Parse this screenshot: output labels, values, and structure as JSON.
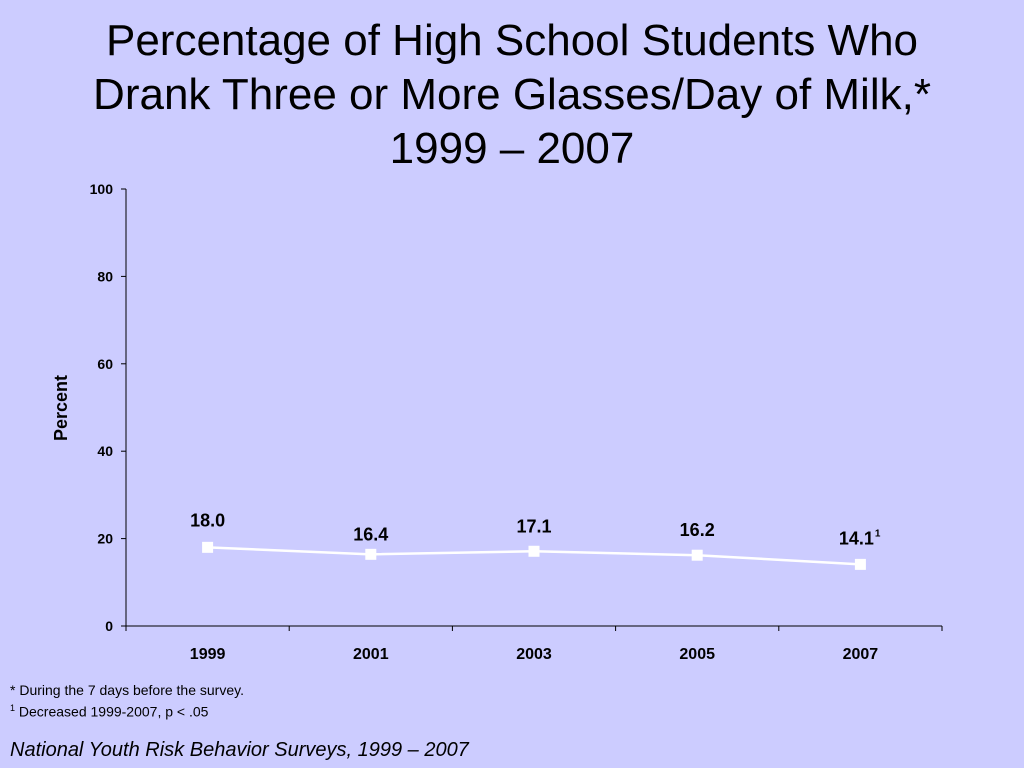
{
  "title_lines": [
    "Percentage of High School Students Who",
    "Drank Three or More Glasses/Day of Milk,*",
    "1999 – 2007"
  ],
  "chart_data": {
    "type": "line",
    "title": "Percentage of High School Students Who Drank Three or More Glasses/Day of Milk,* 1999 – 2007",
    "xlabel": "",
    "ylabel": "Percent",
    "categories": [
      "1999",
      "2001",
      "2003",
      "2005",
      "2007"
    ],
    "series": [
      {
        "values": [
          18.0,
          16.4,
          17.1,
          16.2,
          14.1
        ],
        "labels": [
          "18.0",
          "16.4",
          "17.1",
          "16.2",
          "14.1"
        ],
        "label_superscripts": [
          "",
          "",
          "",
          "",
          "1"
        ]
      }
    ],
    "ylim": [
      0,
      100
    ],
    "yticks": [
      0,
      20,
      40,
      60,
      80,
      100
    ],
    "grid": false,
    "legend": "none",
    "marker": "square",
    "line_color": "#ffffff",
    "background_color": "#ccccff"
  },
  "footnotes": {
    "asterisk": "* During the 7 days before the survey.",
    "sup_marker": "1",
    "one": "Decreased 1999-2007, p < .05"
  },
  "source": "National Youth Risk Behavior Surveys, 1999 – 2007"
}
